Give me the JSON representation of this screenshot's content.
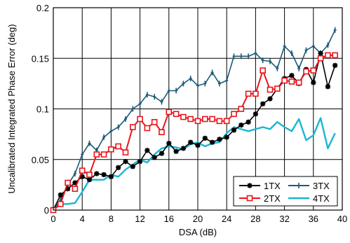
{
  "chart_data": {
    "type": "line",
    "title": "",
    "xlabel": "DSA (dB)",
    "ylabel": "Uncalibrated Integrated Phase Error (deg)",
    "xlim": [
      0,
      40
    ],
    "ylim": [
      0,
      0.2
    ],
    "xticks": [
      0,
      4,
      8,
      12,
      16,
      20,
      24,
      28,
      32,
      36,
      40
    ],
    "yticks": [
      0,
      0.05,
      0.1,
      0.15,
      0.2
    ],
    "ytick_labels": [
      "0",
      "0.05",
      "0.1",
      "0.15",
      "0.2"
    ],
    "grid": true,
    "legend_position": "bottom-right",
    "series": [
      {
        "name": "1TX",
        "color": "#000000",
        "marker": "star",
        "x": [
          0,
          1,
          2,
          3,
          4,
          5,
          6,
          7,
          8,
          9,
          10,
          11,
          12,
          13,
          14,
          15,
          16,
          17,
          18,
          19,
          20,
          21,
          22,
          23,
          24,
          25,
          26,
          27,
          28,
          29,
          30,
          31,
          32,
          33,
          34,
          35,
          36,
          37,
          38,
          39
        ],
        "y": [
          0,
          0.015,
          0.021,
          0.027,
          0.033,
          0.03,
          0.036,
          0.035,
          0.033,
          0.042,
          0.048,
          0.043,
          0.048,
          0.059,
          0.052,
          0.056,
          0.066,
          0.058,
          0.061,
          0.067,
          0.064,
          0.071,
          0.067,
          0.07,
          0.072,
          0.079,
          0.084,
          0.087,
          0.095,
          0.105,
          0.11,
          0.12,
          0.13,
          0.133,
          0.125,
          0.139,
          0.126,
          0.155,
          0.122,
          0.143
        ]
      },
      {
        "name": "2TX",
        "color": "#e8141b",
        "marker": "square",
        "x": [
          0,
          1,
          2,
          3,
          4,
          5,
          6,
          7,
          8,
          9,
          10,
          11,
          12,
          13,
          14,
          15,
          16,
          17,
          18,
          19,
          20,
          21,
          22,
          23,
          24,
          25,
          26,
          27,
          28,
          29,
          30,
          31,
          32,
          33,
          34,
          35,
          36,
          37,
          38,
          39
        ],
        "y": [
          0,
          0.006,
          0.027,
          0.021,
          0.039,
          0.035,
          0.055,
          0.055,
          0.06,
          0.063,
          0.057,
          0.082,
          0.09,
          0.081,
          0.087,
          0.077,
          0.097,
          0.095,
          0.092,
          0.09,
          0.088,
          0.09,
          0.09,
          0.088,
          0.088,
          0.095,
          0.1,
          0.115,
          0.115,
          0.138,
          0.119,
          0.12,
          0.128,
          0.127,
          0.126,
          0.137,
          0.138,
          0.15,
          0.153,
          0.153
        ]
      },
      {
        "name": "3TX",
        "color": "#1b5a78",
        "marker": "cross",
        "x": [
          0,
          1,
          2,
          3,
          4,
          5,
          6,
          7,
          8,
          9,
          10,
          11,
          12,
          13,
          14,
          15,
          16,
          17,
          18,
          19,
          20,
          21,
          22,
          23,
          24,
          25,
          26,
          27,
          28,
          29,
          30,
          31,
          32,
          33,
          34,
          35,
          36,
          37,
          38,
          39
        ],
        "y": [
          0,
          0.01,
          0.025,
          0.036,
          0.055,
          0.066,
          0.059,
          0.072,
          0.078,
          0.082,
          0.09,
          0.1,
          0.105,
          0.114,
          0.112,
          0.107,
          0.118,
          0.118,
          0.125,
          0.13,
          0.123,
          0.125,
          0.136,
          0.125,
          0.128,
          0.152,
          0.152,
          0.152,
          0.155,
          0.148,
          0.147,
          0.14,
          0.162,
          0.155,
          0.14,
          0.158,
          0.162,
          0.155,
          0.163,
          0.178
        ]
      },
      {
        "name": "4TX",
        "color": "#1ab6d3",
        "marker": "none",
        "x": [
          0,
          1,
          2,
          3,
          4,
          5,
          6,
          7,
          8,
          9,
          10,
          11,
          12,
          13,
          14,
          15,
          16,
          17,
          18,
          19,
          20,
          21,
          22,
          23,
          24,
          25,
          26,
          27,
          28,
          29,
          30,
          31,
          32,
          33,
          34,
          35,
          36,
          37,
          38,
          39
        ],
        "y": [
          0,
          0.006,
          0.006,
          0.007,
          0.018,
          0.03,
          0.03,
          0.03,
          0.035,
          0.033,
          0.04,
          0.045,
          0.05,
          0.047,
          0.055,
          0.061,
          0.063,
          0.062,
          0.06,
          0.065,
          0.067,
          0.063,
          0.066,
          0.067,
          0.076,
          0.082,
          0.08,
          0.078,
          0.08,
          0.082,
          0.08,
          0.087,
          0.082,
          0.078,
          0.09,
          0.069,
          0.074,
          0.091,
          0.061,
          0.076
        ]
      }
    ]
  }
}
